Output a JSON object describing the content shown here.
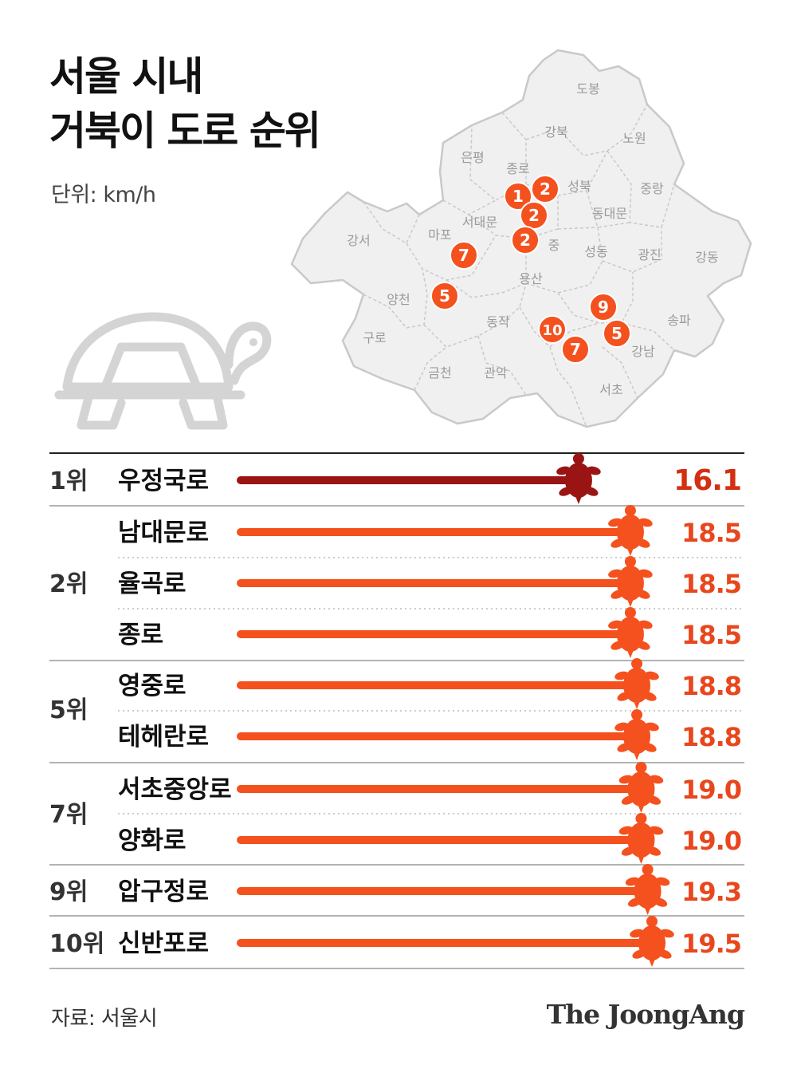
{
  "title_line1": "서울 시내",
  "title_line2": "거북이 도로 순위",
  "unit_label": "단위: km/h",
  "source": "자료: 서울시",
  "logo": "The JoongAng",
  "colors": {
    "top": "#9b1414",
    "bar": "#f4511e",
    "map_fill": "#f0f0f0",
    "map_stroke": "#c9c9c9",
    "map_label": "#9a9a9a",
    "text_value": "#e8471d"
  },
  "map": {
    "districts": [
      {
        "name": "도봉"
      },
      {
        "name": "강북"
      },
      {
        "name": "노원"
      },
      {
        "name": "은평"
      },
      {
        "name": "종로"
      },
      {
        "name": "성북"
      },
      {
        "name": "중랑"
      },
      {
        "name": "서대문"
      },
      {
        "name": "동대문"
      },
      {
        "name": "강서"
      },
      {
        "name": "마포"
      },
      {
        "name": "중"
      },
      {
        "name": "성동"
      },
      {
        "name": "광진"
      },
      {
        "name": "강동"
      },
      {
        "name": "용산"
      },
      {
        "name": "양천"
      },
      {
        "name": "동작"
      },
      {
        "name": "송파"
      },
      {
        "name": "구로"
      },
      {
        "name": "강남"
      },
      {
        "name": "금천"
      },
      {
        "name": "관악"
      },
      {
        "name": "서초"
      }
    ],
    "markers": [
      {
        "label": "1"
      },
      {
        "label": "2"
      },
      {
        "label": "2"
      },
      {
        "label": "2"
      },
      {
        "label": "7"
      },
      {
        "label": "5"
      },
      {
        "label": "9"
      },
      {
        "label": "10"
      },
      {
        "label": "5"
      },
      {
        "label": "7"
      }
    ]
  },
  "chart_data": {
    "type": "bar",
    "orientation": "horizontal",
    "unit": "km/h",
    "rows": [
      {
        "rank": "1위",
        "name": "우정국로",
        "value": 16.1,
        "value_label": "16.1"
      },
      {
        "rank": "2위",
        "name": "남대문로",
        "value": 18.5,
        "value_label": "18.5"
      },
      {
        "rank": "",
        "name": "율곡로",
        "value": 18.5,
        "value_label": "18.5"
      },
      {
        "rank": "",
        "name": "종로",
        "value": 18.5,
        "value_label": "18.5"
      },
      {
        "rank": "5위",
        "name": "영중로",
        "value": 18.8,
        "value_label": "18.8"
      },
      {
        "rank": "",
        "name": "테헤란로",
        "value": 18.8,
        "value_label": "18.8"
      },
      {
        "rank": "7위",
        "name": "서초중앙로",
        "value": 19.0,
        "value_label": "19.0"
      },
      {
        "rank": "",
        "name": "양화로",
        "value": 19.0,
        "value_label": "19.0"
      },
      {
        "rank": "9위",
        "name": "압구정로",
        "value": 19.3,
        "value_label": "19.3"
      },
      {
        "rank": "10위",
        "name": "신반포로",
        "value": 19.5,
        "value_label": "19.5"
      }
    ]
  }
}
